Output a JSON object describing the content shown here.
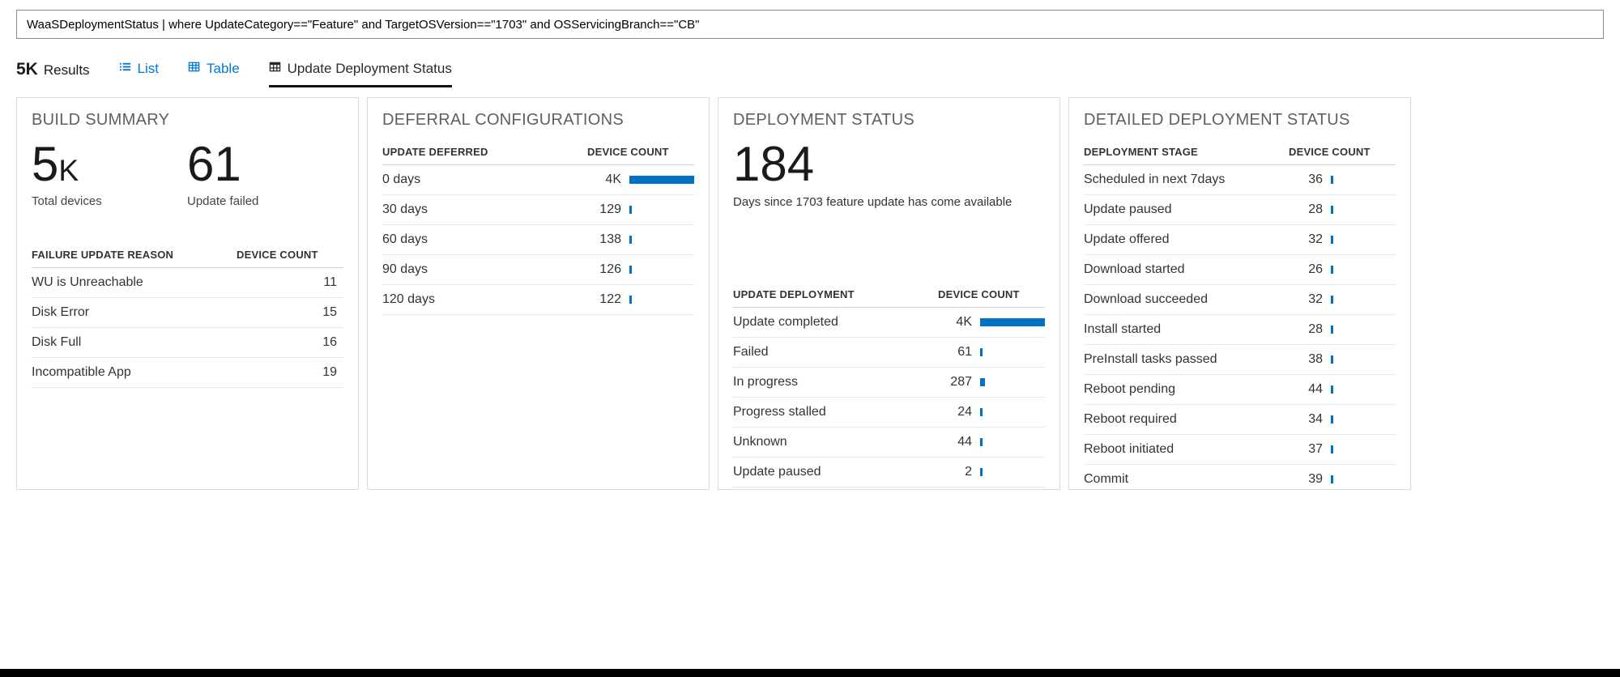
{
  "accent": "#0072c6",
  "query": {
    "value": "WaaSDeploymentStatus | where UpdateCategory==\"Feature\" and TargetOSVersion==\"1703\" and OSServicingBranch==\"CB\""
  },
  "tabs": {
    "results_count": "5K",
    "results_label": "Results",
    "list_label": "List",
    "table_label": "Table",
    "active_label": "Update Deployment Status"
  },
  "panels": {
    "build_summary": {
      "title": "BUILD SUMMARY",
      "metrics": [
        {
          "value": "5",
          "suffix": "K",
          "label": "Total devices"
        },
        {
          "value": "61",
          "suffix": "",
          "label": "Update failed"
        }
      ],
      "table": {
        "headers": [
          "FAILURE UPDATE REASON",
          "DEVICE COUNT"
        ],
        "bars": false,
        "max": 0,
        "rows": [
          {
            "label": "WU is Unreachable",
            "value": "11",
            "num": 11
          },
          {
            "label": "Disk Error",
            "value": "15",
            "num": 15
          },
          {
            "label": "Disk Full",
            "value": "16",
            "num": 16
          },
          {
            "label": "Incompatible App",
            "value": "19",
            "num": 19
          }
        ]
      }
    },
    "deferral": {
      "title": "DEFERRAL CONFIGURATIONS",
      "table": {
        "headers": [
          "UPDATE DEFERRED",
          "DEVICE COUNT"
        ],
        "bars": true,
        "max": 4000,
        "rows": [
          {
            "label": "0 days",
            "value": "4K",
            "num": 4000
          },
          {
            "label": "30 days",
            "value": "129",
            "num": 129
          },
          {
            "label": "60 days",
            "value": "138",
            "num": 138
          },
          {
            "label": "90 days",
            "value": "126",
            "num": 126
          },
          {
            "label": "120 days",
            "value": "122",
            "num": 122
          }
        ]
      }
    },
    "deployment": {
      "title": "DEPLOYMENT STATUS",
      "metric": {
        "value": "184",
        "suffix": "",
        "label": "Days since 1703 feature update has come available"
      },
      "table": {
        "headers": [
          "UPDATE DEPLOYMENT",
          "DEVICE COUNT"
        ],
        "bars": true,
        "max": 4000,
        "rows": [
          {
            "label": "Update completed",
            "value": "4K",
            "num": 4000
          },
          {
            "label": "Failed",
            "value": "61",
            "num": 61
          },
          {
            "label": "In progress",
            "value": "287",
            "num": 287
          },
          {
            "label": "Progress stalled",
            "value": "24",
            "num": 24
          },
          {
            "label": "Unknown",
            "value": "44",
            "num": 44
          },
          {
            "label": "Update paused",
            "value": "2",
            "num": 2
          }
        ]
      }
    },
    "detailed": {
      "title": "DETAILED DEPLOYMENT STATUS",
      "table": {
        "headers": [
          "DEPLOYMENT STAGE",
          "DEVICE COUNT"
        ],
        "bars": true,
        "max": 4000,
        "rows": [
          {
            "label": "Scheduled in next 7days",
            "value": "36",
            "num": 36
          },
          {
            "label": "Update paused",
            "value": "28",
            "num": 28
          },
          {
            "label": "Update offered",
            "value": "32",
            "num": 32
          },
          {
            "label": "Download started",
            "value": "26",
            "num": 26
          },
          {
            "label": "Download succeeded",
            "value": "32",
            "num": 32
          },
          {
            "label": "Install started",
            "value": "28",
            "num": 28
          },
          {
            "label": "PreInstall tasks passed",
            "value": "38",
            "num": 38
          },
          {
            "label": "Reboot pending",
            "value": "44",
            "num": 44
          },
          {
            "label": "Reboot required",
            "value": "34",
            "num": 34
          },
          {
            "label": "Reboot initiated",
            "value": "37",
            "num": 37
          },
          {
            "label": "Commit",
            "value": "39",
            "num": 39
          }
        ]
      }
    }
  }
}
